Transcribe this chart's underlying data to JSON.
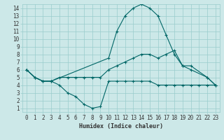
{
  "xlabel": "Humidex (Indice chaleur)",
  "bg_color": "#cce8e8",
  "grid_color": "#99cccc",
  "line_color": "#006666",
  "xlim": [
    -0.5,
    23.5
  ],
  "ylim": [
    0.5,
    14.5
  ],
  "xticks": [
    0,
    1,
    2,
    3,
    4,
    5,
    6,
    7,
    8,
    9,
    10,
    11,
    12,
    13,
    14,
    15,
    16,
    17,
    18,
    19,
    20,
    21,
    22,
    23
  ],
  "yticks": [
    1,
    2,
    3,
    4,
    5,
    6,
    7,
    8,
    9,
    10,
    11,
    12,
    13,
    14
  ],
  "line1_x": [
    0,
    1,
    2,
    3,
    4,
    5,
    6,
    7,
    8,
    9,
    10,
    11,
    12,
    13,
    14,
    15,
    16,
    17,
    18,
    19,
    20,
    21,
    22,
    23
  ],
  "line1_y": [
    6.0,
    5.0,
    4.5,
    4.5,
    4.0,
    3.0,
    2.5,
    1.5,
    1.0,
    1.2,
    4.5,
    4.5,
    4.5,
    4.5,
    4.5,
    4.5,
    4.0,
    4.0,
    4.0,
    4.0,
    4.0,
    4.0,
    4.0,
    4.0
  ],
  "line2_x": [
    0,
    1,
    2,
    3,
    4,
    5,
    6,
    7,
    8,
    9,
    10,
    11,
    12,
    13,
    14,
    15,
    16,
    17,
    18,
    19,
    20,
    22,
    23
  ],
  "line2_y": [
    6.0,
    5.0,
    4.5,
    4.5,
    5.0,
    5.0,
    5.0,
    5.0,
    5.0,
    5.0,
    6.0,
    6.5,
    7.0,
    7.5,
    8.0,
    8.0,
    7.5,
    8.0,
    8.5,
    6.5,
    6.5,
    5.0,
    4.0
  ],
  "line3_x": [
    0,
    1,
    2,
    3,
    10,
    11,
    12,
    13,
    14,
    15,
    16,
    17,
    18,
    19,
    20,
    22,
    23
  ],
  "line3_y": [
    6.0,
    5.0,
    4.5,
    4.5,
    7.5,
    11.0,
    13.0,
    14.0,
    14.5,
    14.0,
    13.0,
    10.5,
    8.0,
    6.5,
    6.0,
    5.0,
    4.0
  ],
  "figsize": [
    3.2,
    2.0
  ],
  "dpi": 100
}
